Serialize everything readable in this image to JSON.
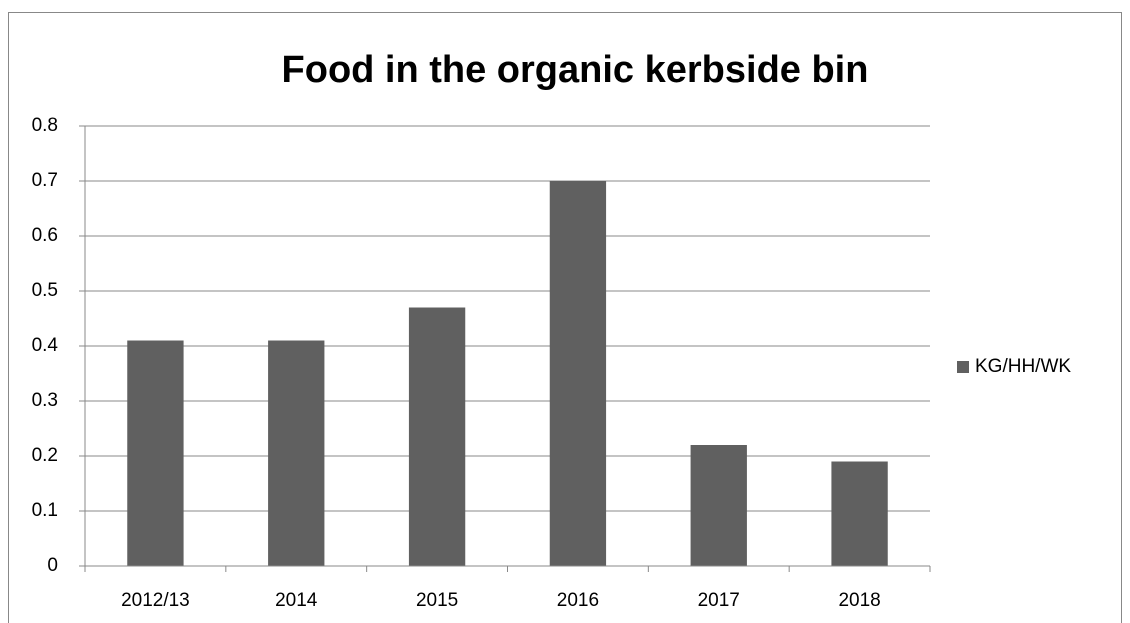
{
  "chart_data": {
    "type": "bar",
    "title": "Food in the organic kerbside bin",
    "categories": [
      "2012/13",
      "2014",
      "2015",
      "2016",
      "2017",
      "2018"
    ],
    "series": [
      {
        "name": "KG/HH/WK",
        "color": "#606060",
        "values": [
          0.41,
          0.41,
          0.47,
          0.7,
          0.22,
          0.19
        ]
      }
    ],
    "ylim": [
      0,
      0.8
    ],
    "yticks": [
      0,
      0.1,
      0.2,
      0.3,
      0.4,
      0.5,
      0.6,
      0.7,
      0.8
    ],
    "grid": true,
    "legend": "right"
  }
}
